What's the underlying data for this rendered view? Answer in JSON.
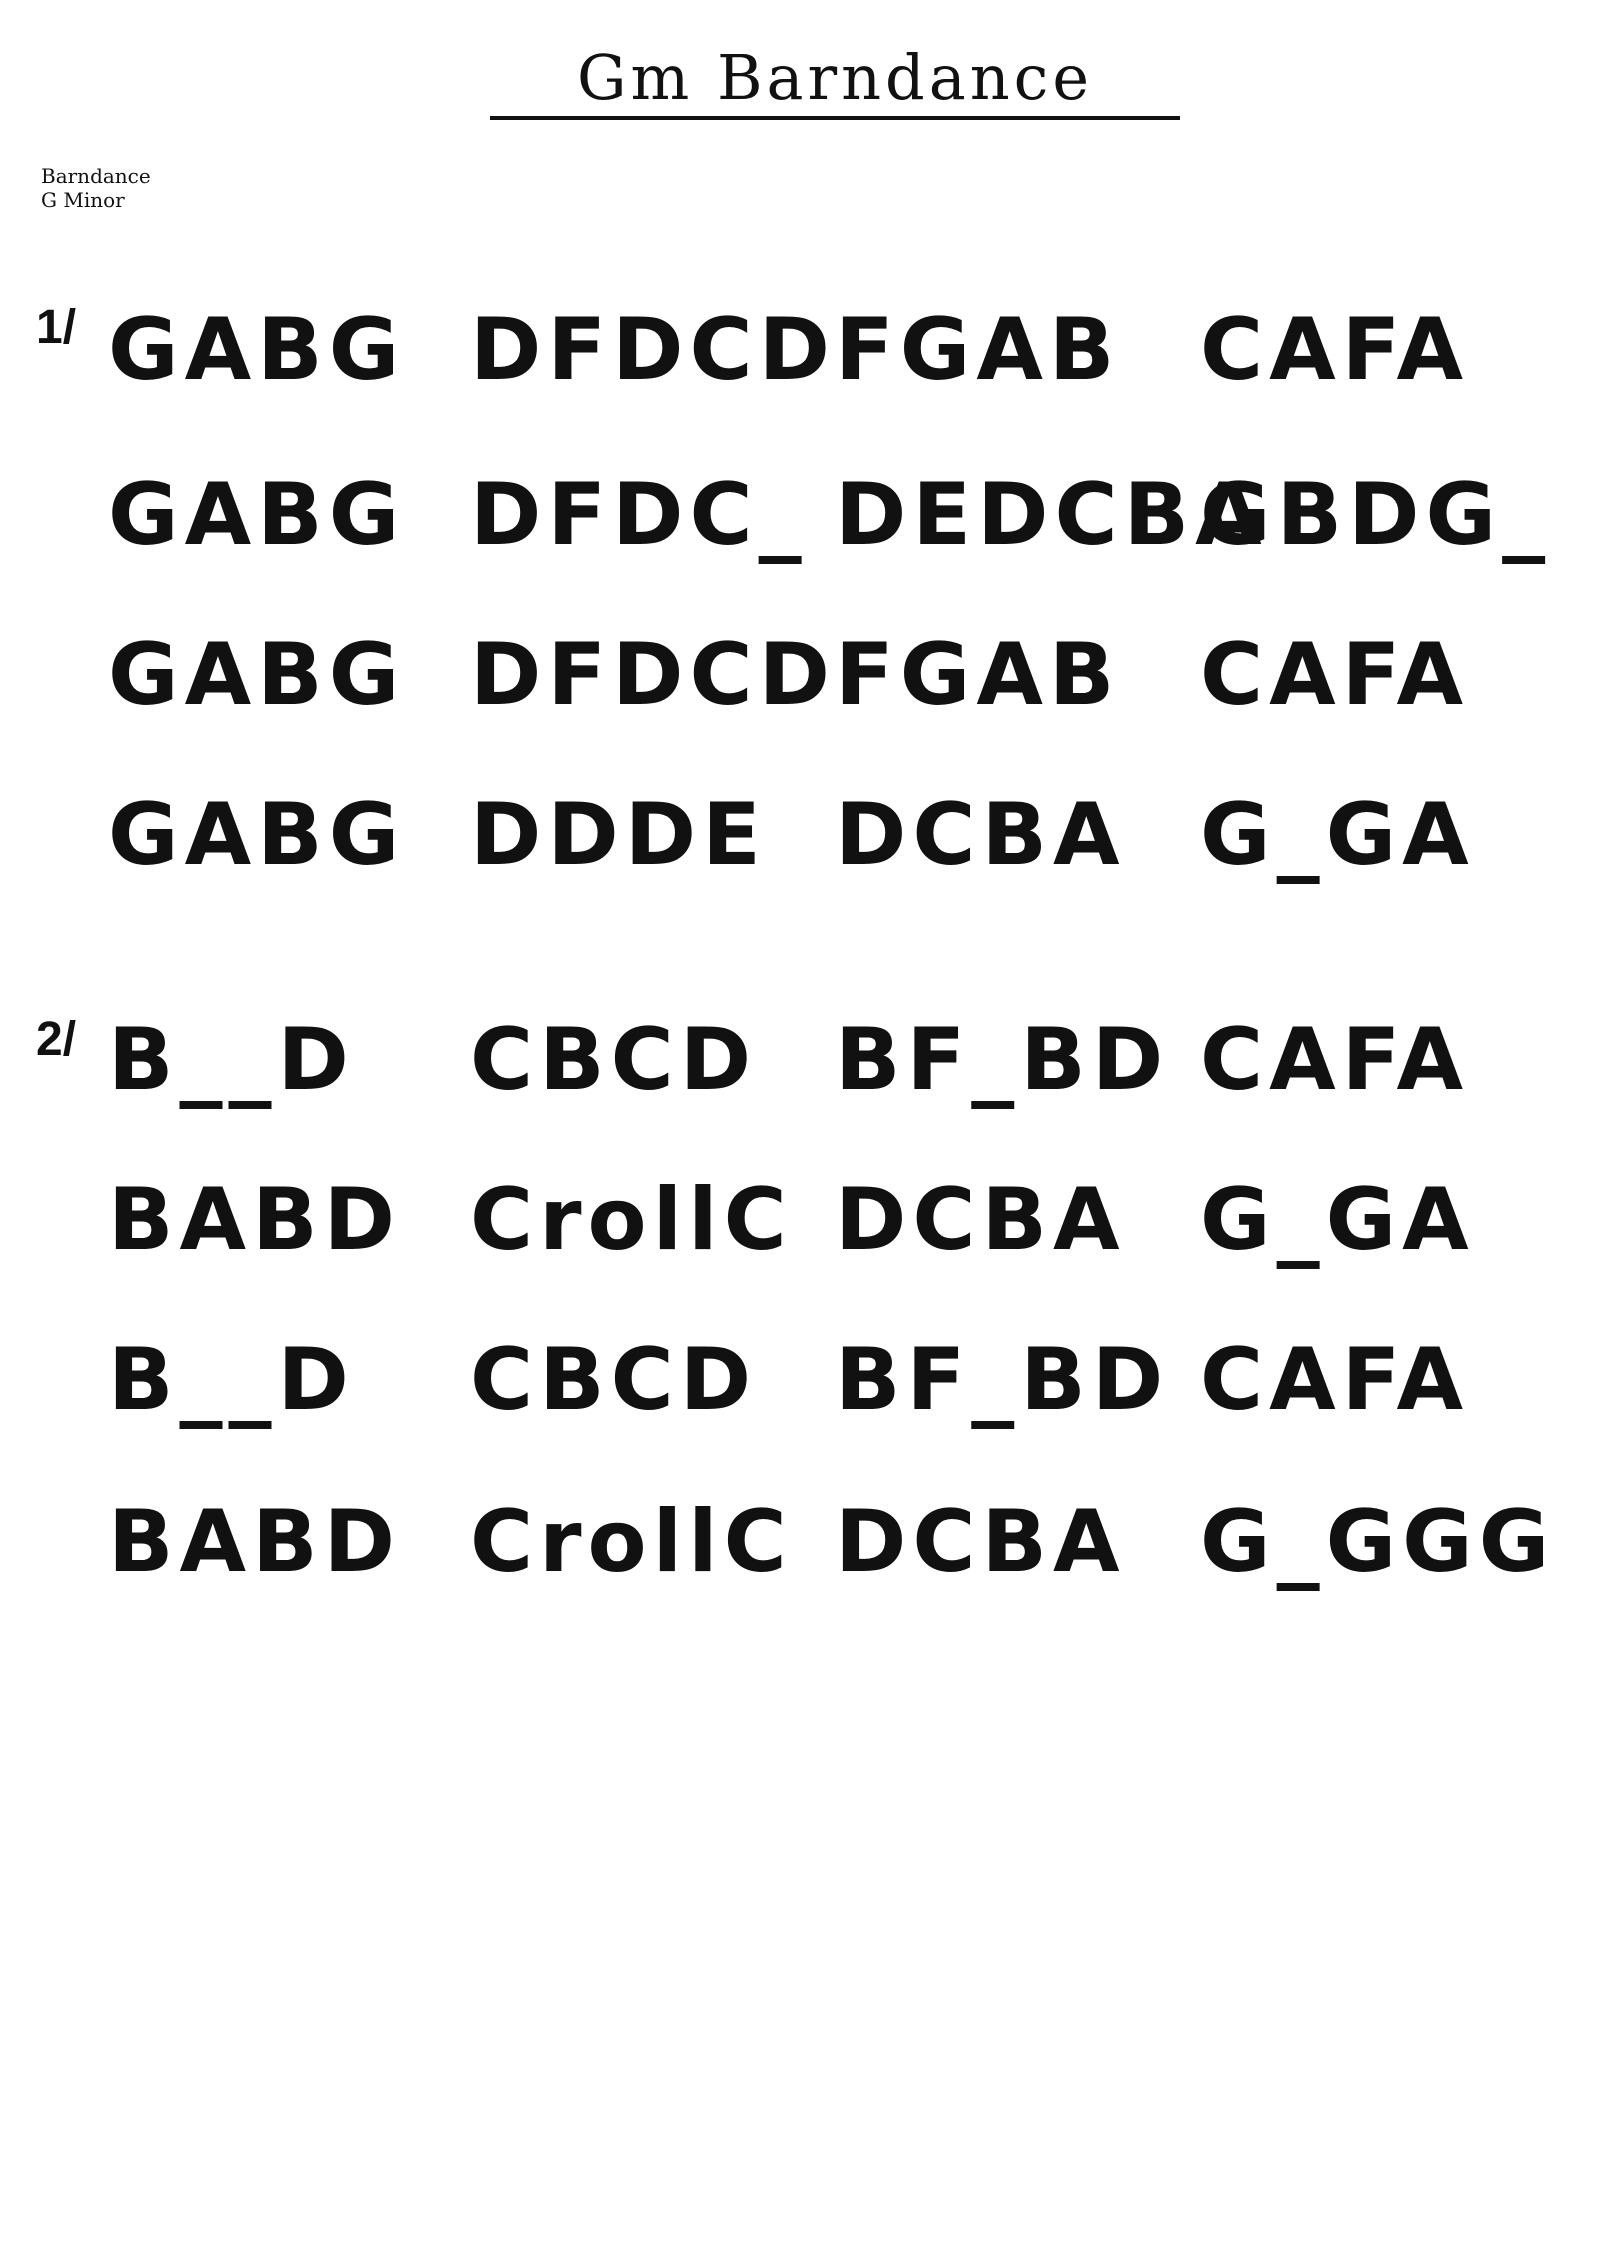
{
  "tune": {
    "title": "Gm Barndance",
    "type": "Barndance",
    "key": "G Minor"
  },
  "parts": [
    {
      "marker": "1/",
      "lines": [
        [
          "GABG",
          "DFDCD",
          "FGAB",
          "CAFA"
        ],
        [
          "GABG",
          "DFDC_",
          "DEDCBA",
          "GBDG_"
        ],
        [
          "GABG",
          "DFDCD",
          "FGAB",
          "CAFA"
        ],
        [
          "GABG",
          "DDDE",
          "DCBA",
          "G_GA"
        ]
      ]
    },
    {
      "marker": "2/",
      "lines": [
        [
          "B__D",
          "CBCD",
          "BF_BD",
          "CAFA"
        ],
        [
          "BABD",
          "CrollC",
          "DCBA",
          "G_GA"
        ],
        [
          "B__D",
          "CBCD",
          "BF_BD",
          "CAFA"
        ],
        [
          "BABD",
          "CrollC",
          "DCBA",
          "G_GGG"
        ]
      ]
    }
  ]
}
